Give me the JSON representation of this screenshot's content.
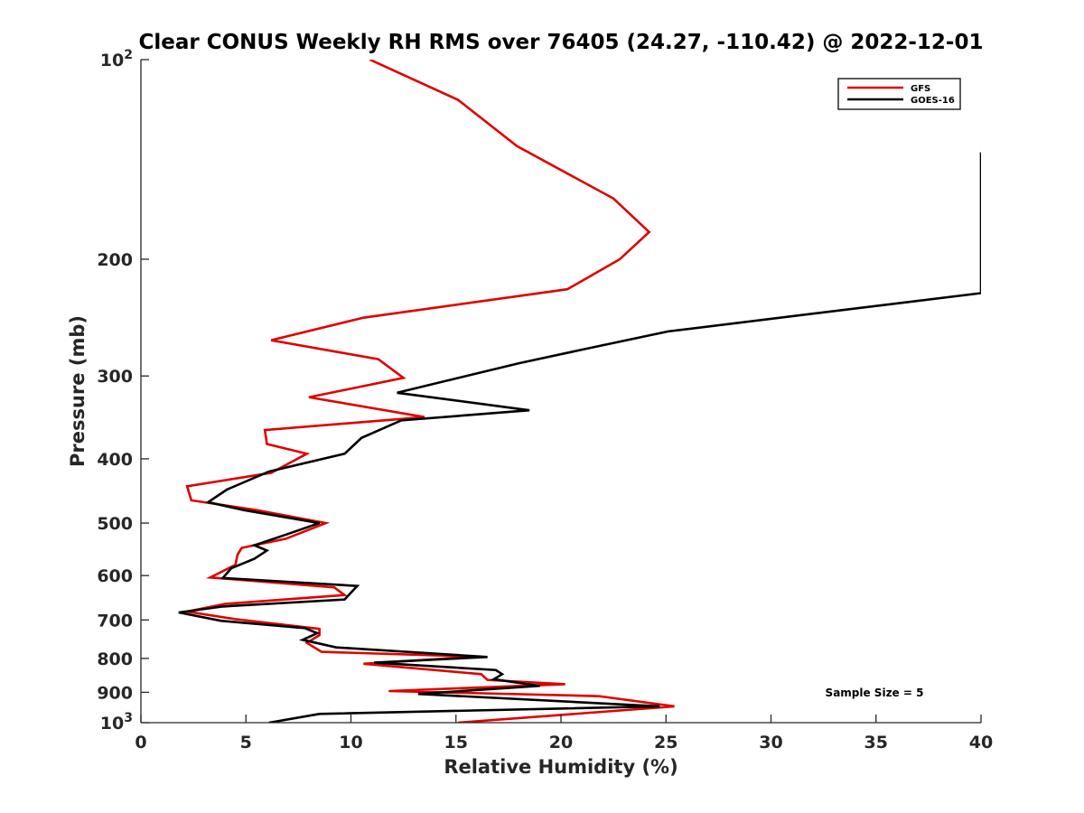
{
  "chart_data": {
    "type": "line",
    "title": "Clear CONUS Weekly RH RMS over 76405 (24.27, -110.42) @ 2022-12-01",
    "xlabel": "Relative Humidity (%)",
    "ylabel": "Pressure (mb)",
    "xlim": [
      0,
      40
    ],
    "ylim": [
      100,
      1000
    ],
    "yscale": "log",
    "yreversed": true,
    "grid": false,
    "x_ticks": [
      0,
      5,
      10,
      15,
      20,
      25,
      30,
      35,
      40
    ],
    "x_tick_labels": [
      "0",
      "5",
      "10",
      "15",
      "20",
      "25",
      "30",
      "35",
      "40"
    ],
    "y_ticks": [
      100,
      200,
      300,
      400,
      500,
      600,
      700,
      800,
      900,
      1000
    ],
    "y_tick_labels": [
      {
        "base": "10",
        "exp": "2"
      },
      {
        "base": "200",
        "exp": ""
      },
      {
        "base": "300",
        "exp": ""
      },
      {
        "base": "400",
        "exp": ""
      },
      {
        "base": "500",
        "exp": ""
      },
      {
        "base": "600",
        "exp": ""
      },
      {
        "base": "700",
        "exp": ""
      },
      {
        "base": "800",
        "exp": ""
      },
      {
        "base": "900",
        "exp": ""
      },
      {
        "base": "10",
        "exp": "3"
      }
    ],
    "legend_position": "top-right",
    "annotation": "Sample Size = 5",
    "series": [
      {
        "name": "GFS",
        "color": "#e00000",
        "points": [
          [
            10.9,
            100
          ],
          [
            15.1,
            115
          ],
          [
            17.9,
            135
          ],
          [
            22.5,
            162
          ],
          [
            24.2,
            182
          ],
          [
            22.8,
            200
          ],
          [
            20.3,
            222
          ],
          [
            10.6,
            245
          ],
          [
            6.2,
            265
          ],
          [
            11.3,
            283
          ],
          [
            12.5,
            302
          ],
          [
            8.0,
            323
          ],
          [
            13.5,
            346
          ],
          [
            5.9,
            362
          ],
          [
            6.0,
            380
          ],
          [
            7.9,
            393
          ],
          [
            6.2,
            420
          ],
          [
            2.2,
            440
          ],
          [
            2.4,
            462
          ],
          [
            5.5,
            478
          ],
          [
            8.8,
            500
          ],
          [
            6.9,
            528
          ],
          [
            4.8,
            545
          ],
          [
            4.6,
            558
          ],
          [
            4.5,
            578
          ],
          [
            3.3,
            604
          ],
          [
            9.2,
            625
          ],
          [
            9.7,
            642
          ],
          [
            4.0,
            662
          ],
          [
            2.2,
            680
          ],
          [
            4.5,
            698
          ],
          [
            8.5,
            722
          ],
          [
            8.5,
            738
          ],
          [
            7.9,
            758
          ],
          [
            8.6,
            782
          ],
          [
            16.0,
            795
          ],
          [
            10.6,
            815
          ],
          [
            16.2,
            845
          ],
          [
            16.5,
            862
          ],
          [
            20.2,
            875
          ],
          [
            11.8,
            896
          ],
          [
            21.8,
            912
          ],
          [
            25.4,
            945
          ],
          [
            15.1,
            1000
          ]
        ]
      },
      {
        "name": "GOES-16",
        "color": "#000000",
        "points": [
          [
            40.0,
            138
          ],
          [
            40.0,
            225
          ],
          [
            25.1,
            257
          ],
          [
            21.9,
            270
          ],
          [
            18.0,
            287
          ],
          [
            12.2,
            318
          ],
          [
            18.5,
            338
          ],
          [
            12.4,
            350
          ],
          [
            10.5,
            372
          ],
          [
            9.7,
            393
          ],
          [
            6.1,
            418
          ],
          [
            4.1,
            445
          ],
          [
            3.2,
            465
          ],
          [
            4.9,
            478
          ],
          [
            8.5,
            500
          ],
          [
            7.1,
            518
          ],
          [
            5.4,
            540
          ],
          [
            6.0,
            550
          ],
          [
            5.4,
            566
          ],
          [
            4.3,
            585
          ],
          [
            3.9,
            605
          ],
          [
            10.3,
            622
          ],
          [
            9.7,
            652
          ],
          [
            3.9,
            668
          ],
          [
            1.8,
            682
          ],
          [
            3.8,
            702
          ],
          [
            7.8,
            720
          ],
          [
            8.4,
            733
          ],
          [
            7.7,
            750
          ],
          [
            9.3,
            770
          ],
          [
            16.5,
            796
          ],
          [
            11.1,
            812
          ],
          [
            16.9,
            833
          ],
          [
            17.2,
            845
          ],
          [
            16.8,
            860
          ],
          [
            19.0,
            880
          ],
          [
            13.2,
            905
          ],
          [
            24.7,
            945
          ],
          [
            8.5,
            970
          ],
          [
            6.1,
            1000
          ]
        ]
      }
    ]
  }
}
